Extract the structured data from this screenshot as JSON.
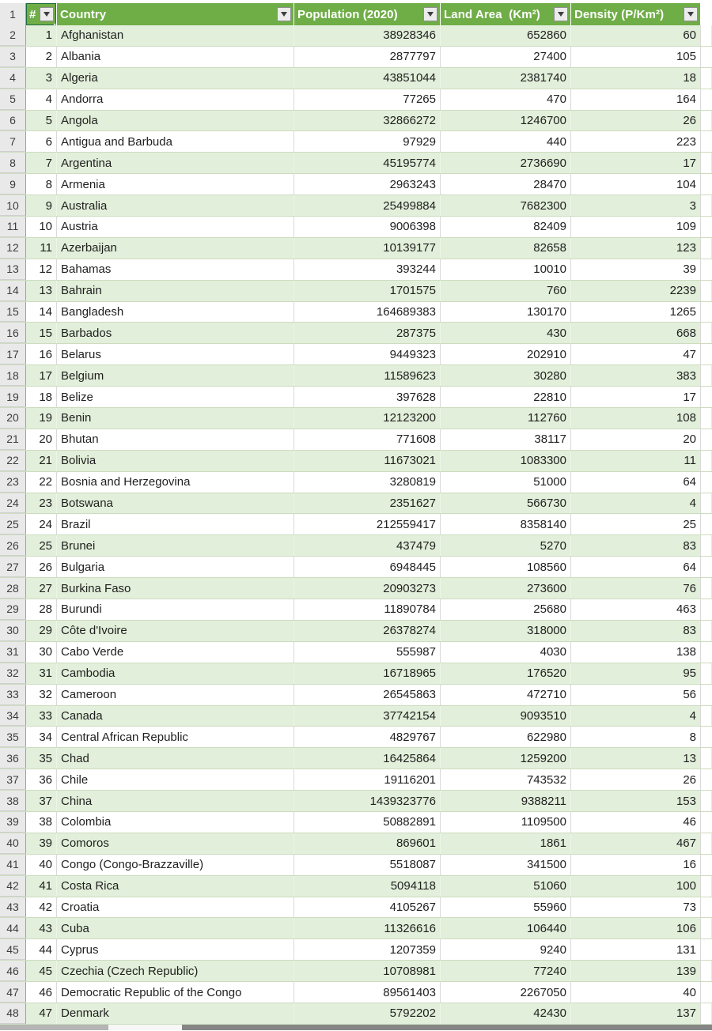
{
  "colors": {
    "header_green": "#6FAD47",
    "band_green": "#E2EFDA",
    "selection_green": "#1E6B41"
  },
  "table": {
    "header_row_num": "1",
    "columns": {
      "rank": "#",
      "country": "Country",
      "population": "Population (2020)",
      "land_area": "Land Area  (Km²)",
      "density": "Density (P/Km²)"
    },
    "rows": [
      {
        "row_num": "2",
        "rank": "1",
        "country": "Afghanistan",
        "population": "38928346",
        "land_area": "652860",
        "density": "60"
      },
      {
        "row_num": "3",
        "rank": "2",
        "country": "Albania",
        "population": "2877797",
        "land_area": "27400",
        "density": "105"
      },
      {
        "row_num": "4",
        "rank": "3",
        "country": "Algeria",
        "population": "43851044",
        "land_area": "2381740",
        "density": "18"
      },
      {
        "row_num": "5",
        "rank": "4",
        "country": "Andorra",
        "population": "77265",
        "land_area": "470",
        "density": "164"
      },
      {
        "row_num": "6",
        "rank": "5",
        "country": "Angola",
        "population": "32866272",
        "land_area": "1246700",
        "density": "26"
      },
      {
        "row_num": "7",
        "rank": "6",
        "country": "Antigua and Barbuda",
        "population": "97929",
        "land_area": "440",
        "density": "223"
      },
      {
        "row_num": "8",
        "rank": "7",
        "country": "Argentina",
        "population": "45195774",
        "land_area": "2736690",
        "density": "17"
      },
      {
        "row_num": "9",
        "rank": "8",
        "country": "Armenia",
        "population": "2963243",
        "land_area": "28470",
        "density": "104"
      },
      {
        "row_num": "10",
        "rank": "9",
        "country": "Australia",
        "population": "25499884",
        "land_area": "7682300",
        "density": "3"
      },
      {
        "row_num": "11",
        "rank": "10",
        "country": "Austria",
        "population": "9006398",
        "land_area": "82409",
        "density": "109"
      },
      {
        "row_num": "12",
        "rank": "11",
        "country": "Azerbaijan",
        "population": "10139177",
        "land_area": "82658",
        "density": "123"
      },
      {
        "row_num": "13",
        "rank": "12",
        "country": "Bahamas",
        "population": "393244",
        "land_area": "10010",
        "density": "39"
      },
      {
        "row_num": "14",
        "rank": "13",
        "country": "Bahrain",
        "population": "1701575",
        "land_area": "760",
        "density": "2239"
      },
      {
        "row_num": "15",
        "rank": "14",
        "country": "Bangladesh",
        "population": "164689383",
        "land_area": "130170",
        "density": "1265"
      },
      {
        "row_num": "16",
        "rank": "15",
        "country": "Barbados",
        "population": "287375",
        "land_area": "430",
        "density": "668"
      },
      {
        "row_num": "17",
        "rank": "16",
        "country": "Belarus",
        "population": "9449323",
        "land_area": "202910",
        "density": "47"
      },
      {
        "row_num": "18",
        "rank": "17",
        "country": "Belgium",
        "population": "11589623",
        "land_area": "30280",
        "density": "383"
      },
      {
        "row_num": "19",
        "rank": "18",
        "country": "Belize",
        "population": "397628",
        "land_area": "22810",
        "density": "17"
      },
      {
        "row_num": "20",
        "rank": "19",
        "country": "Benin",
        "population": "12123200",
        "land_area": "112760",
        "density": "108"
      },
      {
        "row_num": "21",
        "rank": "20",
        "country": "Bhutan",
        "population": "771608",
        "land_area": "38117",
        "density": "20"
      },
      {
        "row_num": "22",
        "rank": "21",
        "country": "Bolivia",
        "population": "11673021",
        "land_area": "1083300",
        "density": "11"
      },
      {
        "row_num": "23",
        "rank": "22",
        "country": "Bosnia and Herzegovina",
        "population": "3280819",
        "land_area": "51000",
        "density": "64"
      },
      {
        "row_num": "24",
        "rank": "23",
        "country": "Botswana",
        "population": "2351627",
        "land_area": "566730",
        "density": "4"
      },
      {
        "row_num": "25",
        "rank": "24",
        "country": "Brazil",
        "population": "212559417",
        "land_area": "8358140",
        "density": "25"
      },
      {
        "row_num": "26",
        "rank": "25",
        "country": "Brunei",
        "population": "437479",
        "land_area": "5270",
        "density": "83"
      },
      {
        "row_num": "27",
        "rank": "26",
        "country": "Bulgaria",
        "population": "6948445",
        "land_area": "108560",
        "density": "64"
      },
      {
        "row_num": "28",
        "rank": "27",
        "country": "Burkina Faso",
        "population": "20903273",
        "land_area": "273600",
        "density": "76"
      },
      {
        "row_num": "29",
        "rank": "28",
        "country": "Burundi",
        "population": "11890784",
        "land_area": "25680",
        "density": "463"
      },
      {
        "row_num": "30",
        "rank": "29",
        "country": "Côte d'Ivoire",
        "population": "26378274",
        "land_area": "318000",
        "density": "83"
      },
      {
        "row_num": "31",
        "rank": "30",
        "country": "Cabo Verde",
        "population": "555987",
        "land_area": "4030",
        "density": "138"
      },
      {
        "row_num": "32",
        "rank": "31",
        "country": "Cambodia",
        "population": "16718965",
        "land_area": "176520",
        "density": "95"
      },
      {
        "row_num": "33",
        "rank": "32",
        "country": "Cameroon",
        "population": "26545863",
        "land_area": "472710",
        "density": "56"
      },
      {
        "row_num": "34",
        "rank": "33",
        "country": "Canada",
        "population": "37742154",
        "land_area": "9093510",
        "density": "4"
      },
      {
        "row_num": "35",
        "rank": "34",
        "country": "Central African Republic",
        "population": "4829767",
        "land_area": "622980",
        "density": "8"
      },
      {
        "row_num": "36",
        "rank": "35",
        "country": "Chad",
        "population": "16425864",
        "land_area": "1259200",
        "density": "13"
      },
      {
        "row_num": "37",
        "rank": "36",
        "country": "Chile",
        "population": "19116201",
        "land_area": "743532",
        "density": "26"
      },
      {
        "row_num": "38",
        "rank": "37",
        "country": "China",
        "population": "1439323776",
        "land_area": "9388211",
        "density": "153"
      },
      {
        "row_num": "39",
        "rank": "38",
        "country": "Colombia",
        "population": "50882891",
        "land_area": "1109500",
        "density": "46"
      },
      {
        "row_num": "40",
        "rank": "39",
        "country": "Comoros",
        "population": "869601",
        "land_area": "1861",
        "density": "467"
      },
      {
        "row_num": "41",
        "rank": "40",
        "country": "Congo (Congo-Brazzaville)",
        "population": "5518087",
        "land_area": "341500",
        "density": "16"
      },
      {
        "row_num": "42",
        "rank": "41",
        "country": "Costa Rica",
        "population": "5094118",
        "land_area": "51060",
        "density": "100"
      },
      {
        "row_num": "43",
        "rank": "42",
        "country": "Croatia",
        "population": "4105267",
        "land_area": "55960",
        "density": "73"
      },
      {
        "row_num": "44",
        "rank": "43",
        "country": "Cuba",
        "population": "11326616",
        "land_area": "106440",
        "density": "106"
      },
      {
        "row_num": "45",
        "rank": "44",
        "country": "Cyprus",
        "population": "1207359",
        "land_area": "9240",
        "density": "131"
      },
      {
        "row_num": "46",
        "rank": "45",
        "country": "Czechia (Czech Republic)",
        "population": "10708981",
        "land_area": "77240",
        "density": "139"
      },
      {
        "row_num": "47",
        "rank": "46",
        "country": "Democratic Republic of the Congo",
        "population": "89561403",
        "land_area": "2267050",
        "density": "40"
      },
      {
        "row_num": "48",
        "rank": "47",
        "country": "Denmark",
        "population": "5792202",
        "land_area": "42430",
        "density": "137"
      }
    ]
  }
}
